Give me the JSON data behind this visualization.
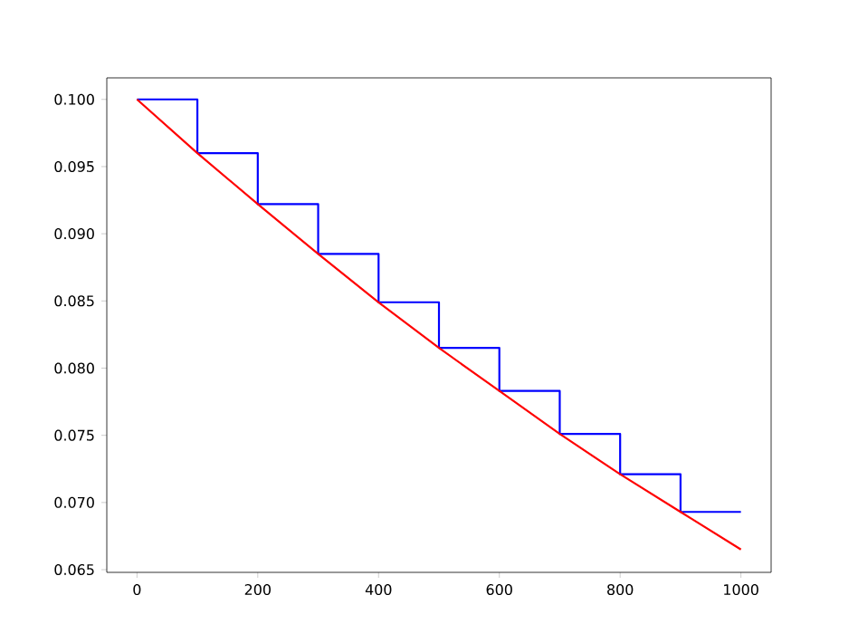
{
  "chart_data": {
    "type": "line",
    "xlim": [
      -50,
      1050
    ],
    "ylim": [
      0.0648,
      0.1016
    ],
    "xticks": [
      0,
      200,
      400,
      600,
      800,
      1000
    ],
    "yticks": [
      {
        "value": 0.065,
        "label": "0.065"
      },
      {
        "value": 0.07,
        "label": "0.070"
      },
      {
        "value": 0.075,
        "label": "0.075"
      },
      {
        "value": 0.08,
        "label": "0.080"
      },
      {
        "value": 0.085,
        "label": "0.085"
      },
      {
        "value": 0.09,
        "label": "0.090"
      },
      {
        "value": 0.095,
        "label": "0.095"
      },
      {
        "value": 0.1,
        "label": "0.100"
      }
    ],
    "series": [
      {
        "type": "step",
        "color": "#0000ff",
        "x": [
          0,
          100,
          200,
          300,
          400,
          500,
          600,
          700,
          800,
          900,
          1000
        ],
        "values": [
          0.1,
          0.096,
          0.0922,
          0.0885,
          0.0849,
          0.0815,
          0.0783,
          0.0751,
          0.0721,
          0.0693,
          0.0693
        ]
      },
      {
        "color": "#ff0000",
        "x": [
          0,
          100,
          200,
          300,
          400,
          500,
          600,
          700,
          800,
          900,
          1000
        ],
        "values": [
          0.1,
          0.096,
          0.0922,
          0.0885,
          0.0849,
          0.0815,
          0.0783,
          0.0751,
          0.0721,
          0.0693,
          0.0665
        ]
      }
    ]
  }
}
